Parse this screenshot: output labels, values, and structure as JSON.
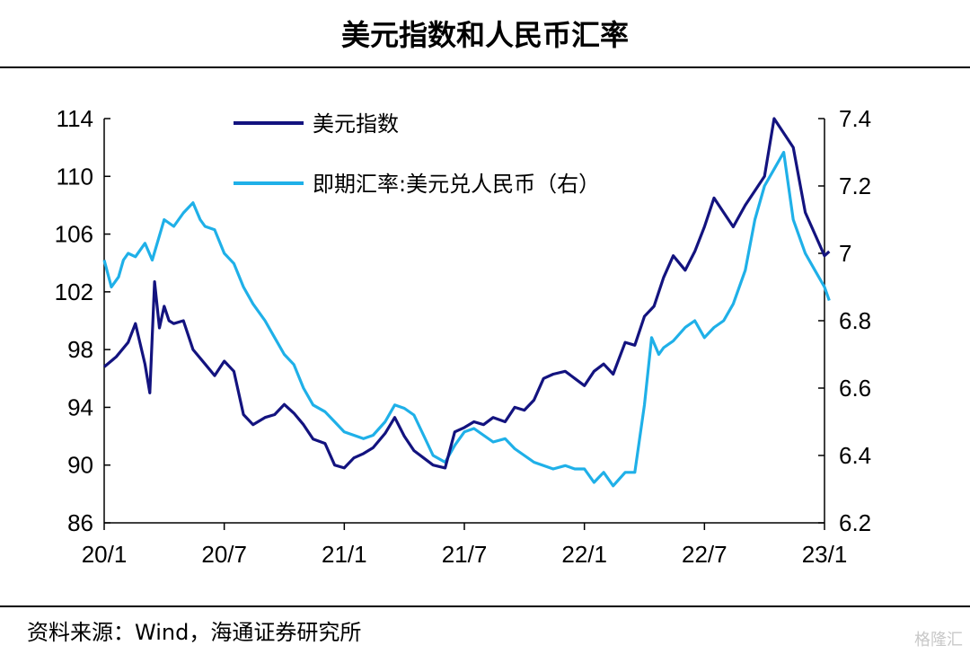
{
  "title": "美元指数和人民币汇率",
  "source": "资料来源：Wind，海通证券研究所",
  "watermark": "格隆汇",
  "chart_data": {
    "type": "line",
    "title": "美元指数和人民币汇率",
    "xlabel": "",
    "ylabel": "",
    "x_ticks": [
      "20/1",
      "20/7",
      "21/1",
      "21/7",
      "22/1",
      "22/7",
      "23/1"
    ],
    "ylim_left": [
      86,
      114
    ],
    "yticks_left": [
      "86",
      "90",
      "94",
      "98",
      "102",
      "106",
      "110",
      "114"
    ],
    "ylim_right": [
      6.2,
      7.4
    ],
    "yticks_right": [
      "6.2",
      "6.4",
      "6.6",
      "6.8",
      "7",
      "7.2",
      "7.4"
    ],
    "legend_position": "top-left",
    "grid": false,
    "series": [
      {
        "name": "美元指数",
        "axis": "left",
        "color": "#13137f",
        "x": [
          2020.0,
          2020.05,
          2020.1,
          2020.13,
          2020.17,
          2020.19,
          2020.21,
          2020.23,
          2020.25,
          2020.27,
          2020.29,
          2020.33,
          2020.37,
          2020.42,
          2020.46,
          2020.5,
          2020.54,
          2020.58,
          2020.62,
          2020.67,
          2020.71,
          2020.75,
          2020.79,
          2020.83,
          2020.87,
          2020.92,
          2020.96,
          2021.0,
          2021.04,
          2021.08,
          2021.12,
          2021.17,
          2021.21,
          2021.25,
          2021.29,
          2021.33,
          2021.37,
          2021.42,
          2021.46,
          2021.5,
          2021.54,
          2021.58,
          2021.62,
          2021.67,
          2021.71,
          2021.75,
          2021.79,
          2021.83,
          2021.87,
          2021.92,
          2021.96,
          2022.0,
          2022.04,
          2022.08,
          2022.12,
          2022.17,
          2022.21,
          2022.25,
          2022.29,
          2022.33,
          2022.37,
          2022.42,
          2022.46,
          2022.5,
          2022.54,
          2022.58,
          2022.62,
          2022.67,
          2022.71,
          2022.75,
          2022.79,
          2022.83,
          2022.87,
          2022.92,
          2022.96,
          2023.0,
          2023.02
        ],
        "values": [
          96.8,
          97.5,
          98.5,
          99.8,
          97.0,
          95.0,
          102.7,
          99.5,
          101.0,
          100.0,
          99.8,
          100.0,
          98.0,
          97.0,
          96.2,
          97.2,
          96.5,
          93.5,
          92.8,
          93.3,
          93.5,
          94.2,
          93.6,
          92.8,
          91.8,
          91.5,
          90.0,
          89.8,
          90.5,
          90.8,
          91.2,
          92.2,
          93.3,
          92.0,
          91.0,
          90.5,
          90.0,
          89.8,
          92.3,
          92.6,
          93.0,
          92.8,
          93.3,
          93.0,
          94.0,
          93.8,
          94.5,
          96.0,
          96.3,
          96.5,
          96.0,
          95.5,
          96.5,
          97.0,
          96.3,
          98.5,
          98.3,
          100.3,
          101.0,
          103.0,
          104.5,
          103.5,
          104.8,
          106.5,
          108.5,
          107.5,
          106.5,
          108.0,
          109.0,
          110.0,
          114.0,
          113.0,
          112.0,
          107.5,
          106.0,
          104.5,
          104.8
        ]
      },
      {
        "name": "即期汇率:美元兑人民币（右）",
        "axis": "right",
        "color": "#1fb0e8",
        "x": [
          2020.0,
          2020.03,
          2020.06,
          2020.08,
          2020.1,
          2020.13,
          2020.17,
          2020.2,
          2020.25,
          2020.29,
          2020.33,
          2020.37,
          2020.4,
          2020.42,
          2020.46,
          2020.5,
          2020.54,
          2020.58,
          2020.62,
          2020.67,
          2020.71,
          2020.75,
          2020.79,
          2020.83,
          2020.87,
          2020.92,
          2020.96,
          2021.0,
          2021.04,
          2021.08,
          2021.12,
          2021.17,
          2021.21,
          2021.25,
          2021.29,
          2021.33,
          2021.37,
          2021.42,
          2021.46,
          2021.5,
          2021.54,
          2021.58,
          2021.62,
          2021.67,
          2021.71,
          2021.75,
          2021.79,
          2021.83,
          2021.87,
          2021.92,
          2021.96,
          2022.0,
          2022.04,
          2022.08,
          2022.12,
          2022.17,
          2022.21,
          2022.25,
          2022.28,
          2022.31,
          2022.33,
          2022.37,
          2022.42,
          2022.46,
          2022.5,
          2022.54,
          2022.58,
          2022.62,
          2022.67,
          2022.71,
          2022.75,
          2022.79,
          2022.83,
          2022.87,
          2022.92,
          2022.96,
          2023.0,
          2023.02
        ],
        "values": [
          6.98,
          6.9,
          6.93,
          6.98,
          7.0,
          6.99,
          7.03,
          6.98,
          7.1,
          7.08,
          7.12,
          7.15,
          7.1,
          7.08,
          7.07,
          7.0,
          6.97,
          6.9,
          6.85,
          6.8,
          6.75,
          6.7,
          6.67,
          6.6,
          6.55,
          6.53,
          6.5,
          6.47,
          6.46,
          6.45,
          6.46,
          6.5,
          6.55,
          6.54,
          6.52,
          6.46,
          6.4,
          6.38,
          6.43,
          6.47,
          6.48,
          6.46,
          6.44,
          6.45,
          6.42,
          6.4,
          6.38,
          6.37,
          6.36,
          6.37,
          6.36,
          6.36,
          6.32,
          6.35,
          6.31,
          6.35,
          6.35,
          6.55,
          6.75,
          6.7,
          6.72,
          6.74,
          6.78,
          6.8,
          6.75,
          6.78,
          6.8,
          6.85,
          6.95,
          7.1,
          7.2,
          7.25,
          7.3,
          7.1,
          7.0,
          6.95,
          6.9,
          6.86
        ]
      }
    ]
  }
}
